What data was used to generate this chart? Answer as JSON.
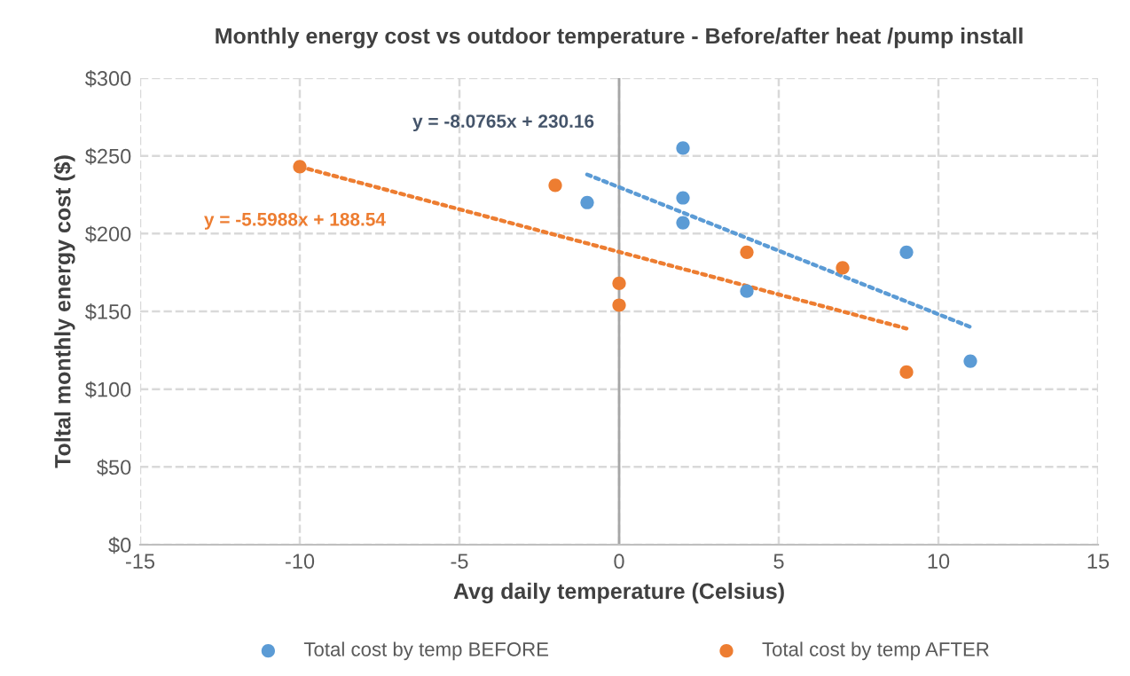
{
  "chart_data": {
    "type": "scatter",
    "title": "Monthly energy cost vs outdoor temperature - Before/after heat /pump install",
    "xlabel": "Avg daily temperature (Celsius)",
    "ylabel": "Toltal monthly energy cost ($)",
    "series": [
      {
        "name": "Total cost by temp BEFORE",
        "color": "#5b9bd5",
        "x": [
          -1,
          2,
          2,
          2,
          4,
          9,
          11
        ],
        "values": [
          220,
          255,
          223,
          207,
          163,
          188,
          118
        ]
      },
      {
        "name": "Total cost by temp AFTER",
        "color": "#ed7d31",
        "x": [
          -10,
          -2,
          0,
          0,
          4,
          7,
          9
        ],
        "values": [
          243,
          231,
          168,
          154,
          188,
          178,
          111
        ]
      },
      {
        "type": "line",
        "color": "#5b9bd5",
        "x": [
          -1,
          11
        ],
        "values": [
          238,
          140
        ],
        "line_style": "dotted",
        "marker": "none"
      },
      {
        "type": "line",
        "color": "#ed7d31",
        "x": [
          -10,
          9
        ],
        "values": [
          243,
          139
        ],
        "line_style": "dotted",
        "marker": "none"
      }
    ],
    "annotations": [
      "y = -8.0765x + 230.16",
      "y = -5.5988x + 188.54"
    ],
    "ref_lines": [
      {
        "axis": "x",
        "value": 0,
        "color": "#a6a6a6"
      }
    ],
    "xlim": [
      -15,
      15
    ],
    "xticks": [
      -15,
      -10,
      -5,
      0,
      5,
      10,
      15
    ],
    "ylim": [
      0,
      300
    ],
    "yticks": [
      {
        "value": 0,
        "label": "$0"
      },
      {
        "value": 50,
        "label": "$50"
      },
      {
        "value": 100,
        "label": "$100"
      },
      {
        "value": 150,
        "label": "$150"
      },
      {
        "value": 200,
        "label": "$200"
      },
      {
        "value": 250,
        "label": "$250"
      },
      {
        "value": 300,
        "label": "$300"
      }
    ],
    "grid": true,
    "legend": "bottom",
    "marker": "circle"
  }
}
